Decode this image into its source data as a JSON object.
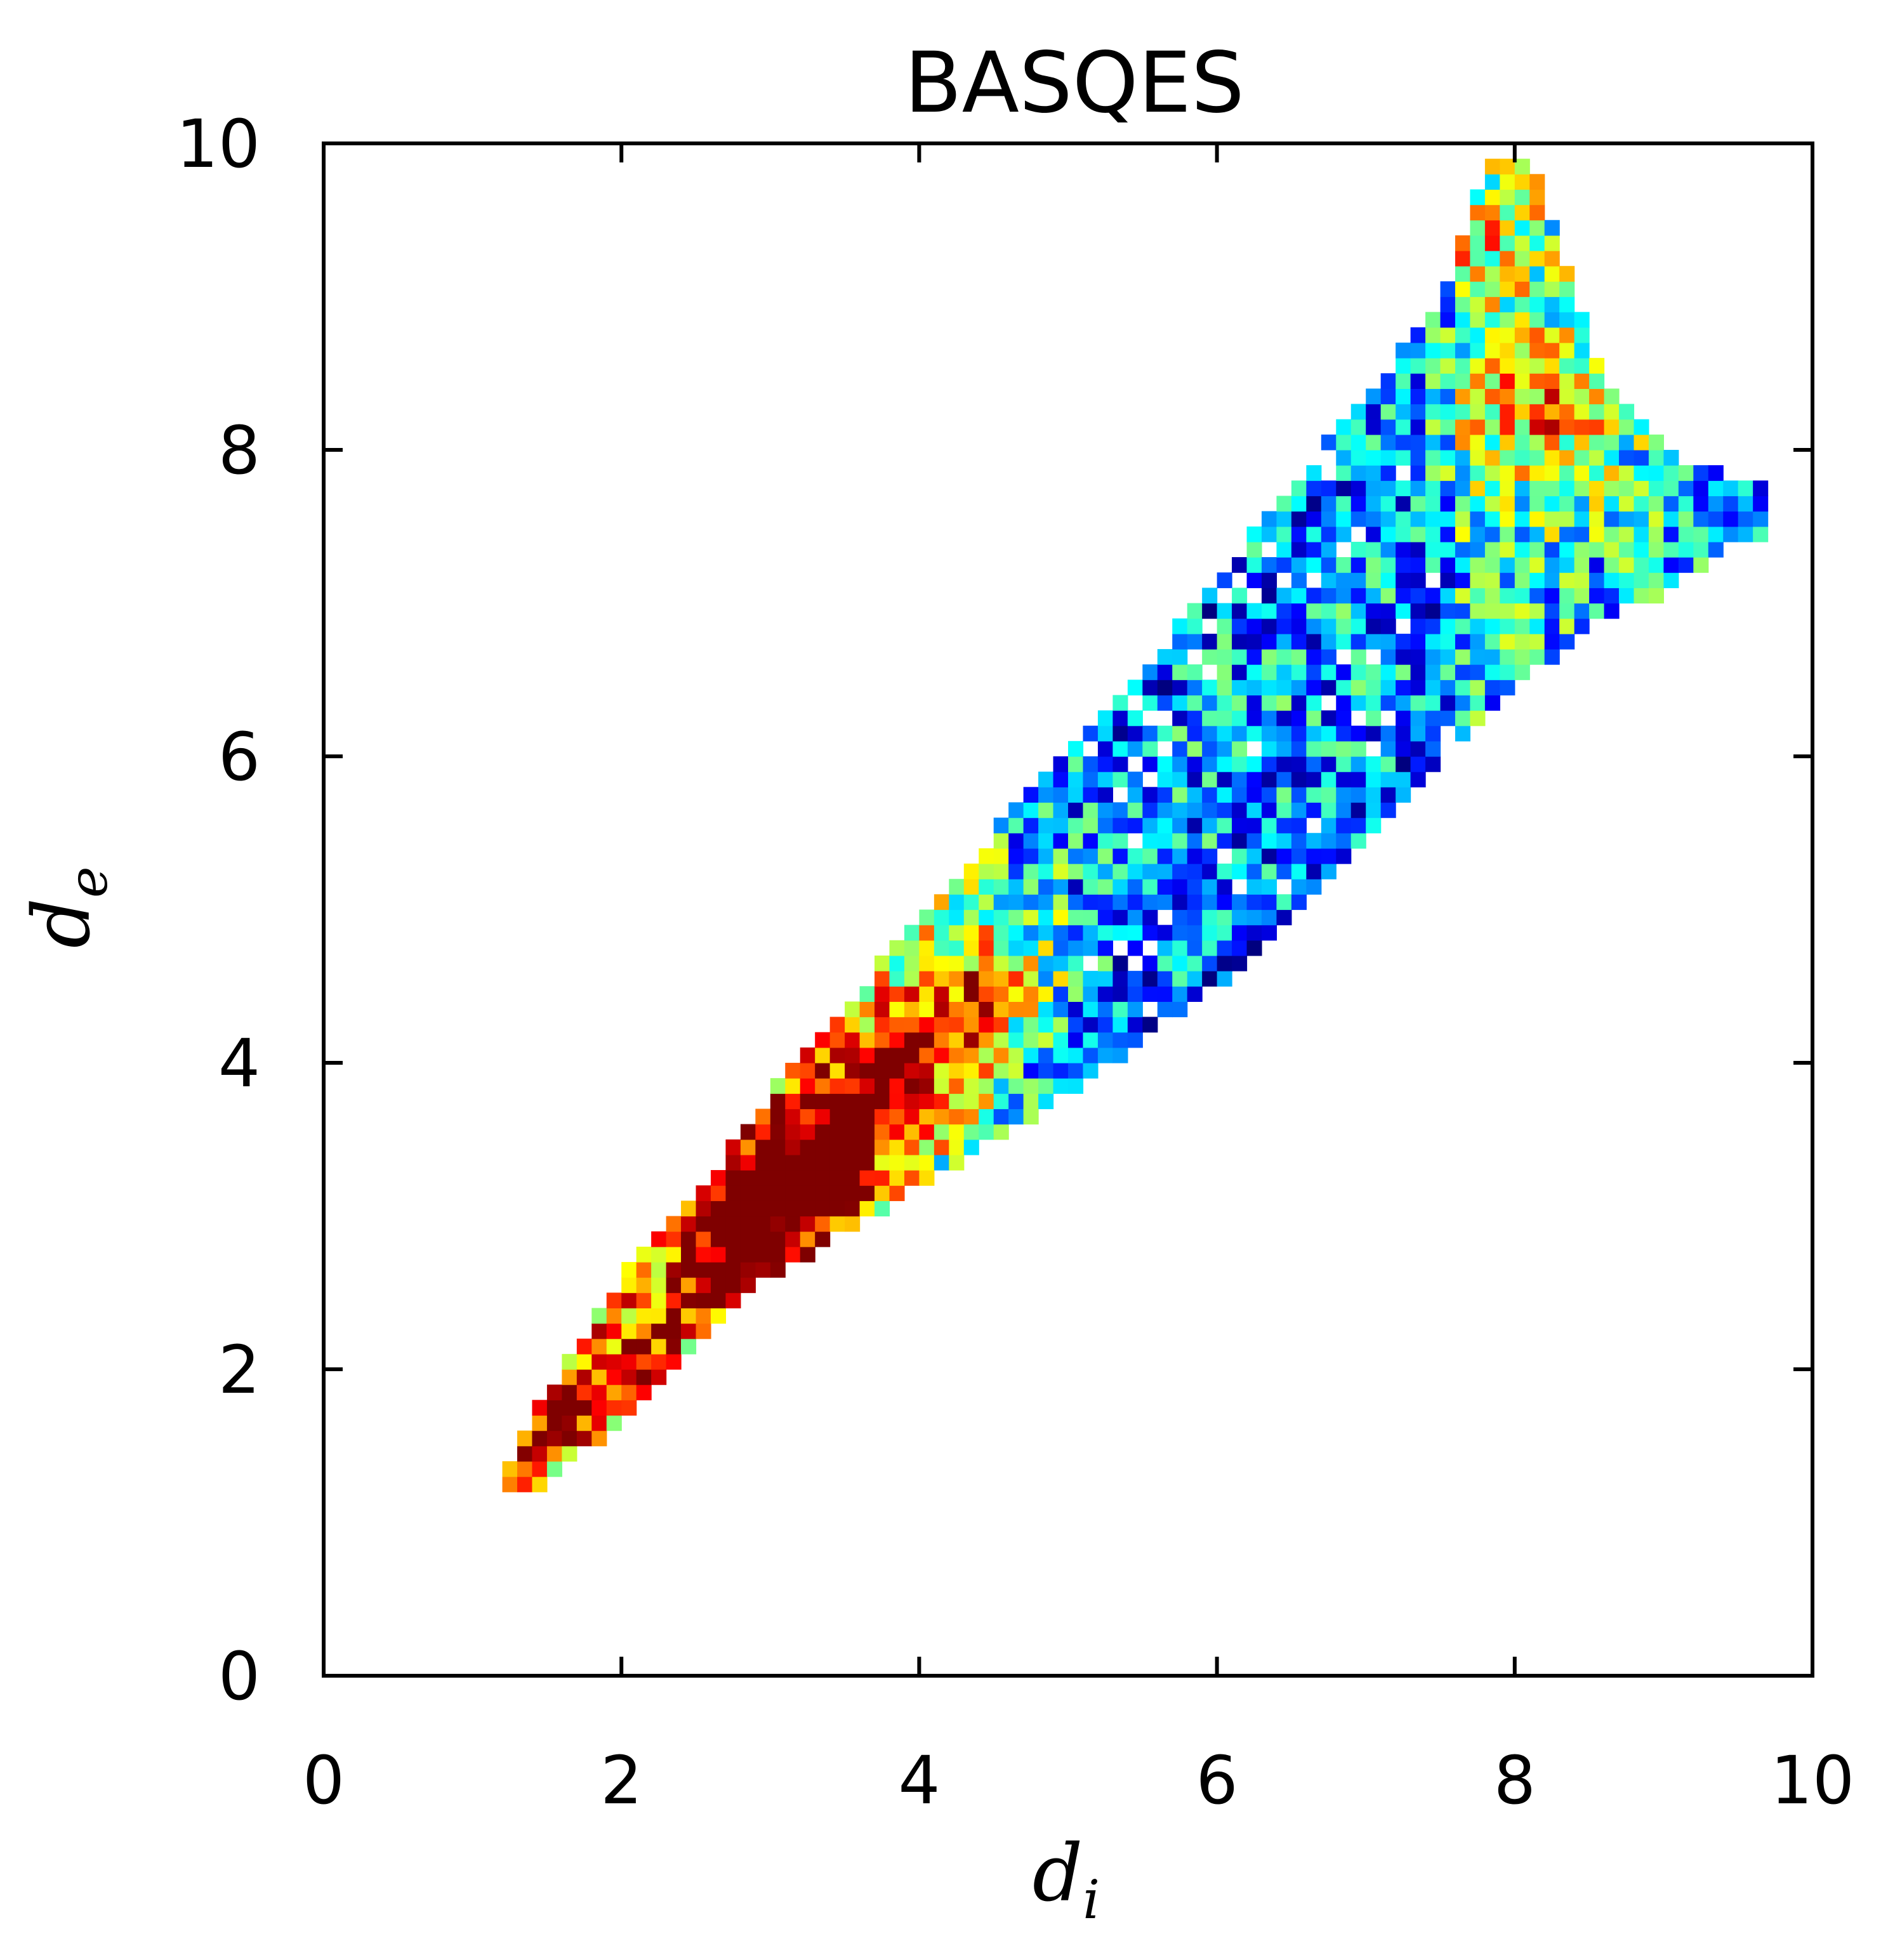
{
  "chart_data": {
    "type": "heatmap",
    "title": "BASQES",
    "xlabel": "d",
    "xlabel_subscript": "i",
    "ylabel": "d",
    "ylabel_subscript": "e",
    "xlim": [
      0,
      10
    ],
    "ylim": [
      0,
      10
    ],
    "xticks": [
      "0",
      "2",
      "4",
      "6",
      "8",
      "10"
    ],
    "yticks": [
      "0",
      "2",
      "4",
      "6",
      "8",
      "10"
    ],
    "grid": false,
    "legend": "none",
    "colormap": "jet",
    "bin_size": 0.2,
    "colormap_stops": [
      "#00007f",
      "#0000ff",
      "#007fff",
      "#00ffff",
      "#7fff7f",
      "#ffff00",
      "#ff7f00",
      "#ff0000",
      "#7f0000"
    ],
    "density_hotspots": [
      {
        "x": 3.2,
        "y": 3.3,
        "level": 1.0
      },
      {
        "x": 2.7,
        "y": 2.9,
        "level": 0.8
      },
      {
        "x": 3.7,
        "y": 3.9,
        "level": 0.65
      },
      {
        "x": 1.5,
        "y": 1.6,
        "level": 0.65
      },
      {
        "x": 2.1,
        "y": 2.2,
        "level": 0.55
      },
      {
        "x": 4.3,
        "y": 4.5,
        "level": 0.5
      },
      {
        "x": 8.2,
        "y": 8.2,
        "level": 0.55
      },
      {
        "x": 7.8,
        "y": 9.4,
        "level": 0.5
      }
    ],
    "outline": {
      "upper": [
        [
          1.2,
          1.35
        ],
        [
          1.5,
          1.85
        ],
        [
          2.0,
          2.6
        ],
        [
          2.5,
          3.15
        ],
        [
          3.0,
          3.8
        ],
        [
          3.5,
          4.35
        ],
        [
          4.0,
          4.95
        ],
        [
          4.5,
          5.5
        ],
        [
          5.0,
          6.05
        ],
        [
          5.5,
          6.55
        ],
        [
          6.0,
          7.15
        ],
        [
          6.5,
          7.75
        ],
        [
          7.0,
          8.35
        ],
        [
          7.5,
          8.95
        ],
        [
          7.8,
          9.9
        ],
        [
          8.1,
          9.9
        ],
        [
          8.6,
          8.4
        ],
        [
          9.0,
          8.0
        ],
        [
          9.5,
          7.8
        ]
      ],
      "lower": [
        [
          1.2,
          1.25
        ],
        [
          1.5,
          1.25
        ],
        [
          2.0,
          1.65
        ],
        [
          2.5,
          2.2
        ],
        [
          3.0,
          2.6
        ],
        [
          3.5,
          2.9
        ],
        [
          4.0,
          3.2
        ],
        [
          4.5,
          3.5
        ],
        [
          5.0,
          3.8
        ],
        [
          5.5,
          4.15
        ],
        [
          6.0,
          4.5
        ],
        [
          6.5,
          4.95
        ],
        [
          7.0,
          5.45
        ],
        [
          7.5,
          5.95
        ],
        [
          8.0,
          6.45
        ],
        [
          8.5,
          6.85
        ],
        [
          9.0,
          7.05
        ],
        [
          9.5,
          7.4
        ]
      ]
    }
  }
}
